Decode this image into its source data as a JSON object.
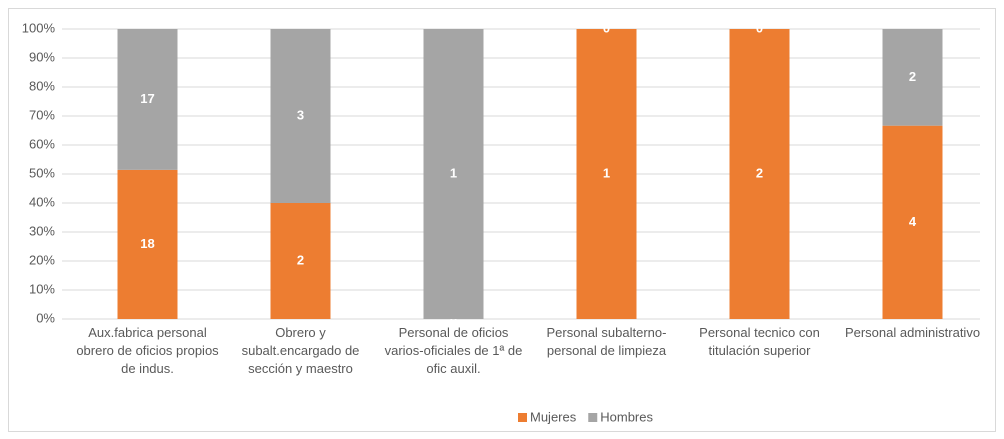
{
  "chart_data": {
    "type": "bar",
    "stack": "percent",
    "categories": [
      "Aux.fabrica personal obrero de oficios propios de indus.",
      "Obrero y subalt.encargado de sección y maestro",
      "Personal de oficios varios-oficiales de 1ª de ofic auxil.",
      "Personal subalterno-personal de limpieza",
      "Personal tecnico con titulación superior",
      "Personal administrativo"
    ],
    "series": [
      {
        "name": "Mujeres",
        "color": "#ed7d31",
        "values": [
          18,
          2,
          0,
          1,
          2,
          4
        ]
      },
      {
        "name": "Hombres",
        "color": "#a5a5a5",
        "values": [
          17,
          3,
          1,
          0,
          0,
          2
        ]
      }
    ],
    "ylim": [
      0,
      100
    ],
    "yticks": [
      {
        "value": 0,
        "label": "0%"
      },
      {
        "value": 10,
        "label": "10%"
      },
      {
        "value": 20,
        "label": "20%"
      },
      {
        "value": 30,
        "label": "30%"
      },
      {
        "value": 40,
        "label": "40%"
      },
      {
        "value": 50,
        "label": "50%"
      },
      {
        "value": 60,
        "label": "60%"
      },
      {
        "value": 70,
        "label": "70%"
      },
      {
        "value": 80,
        "label": "80%"
      },
      {
        "value": 90,
        "label": "90%"
      },
      {
        "value": 100,
        "label": "100%"
      }
    ],
    "grid": true,
    "legend": "bottom"
  }
}
